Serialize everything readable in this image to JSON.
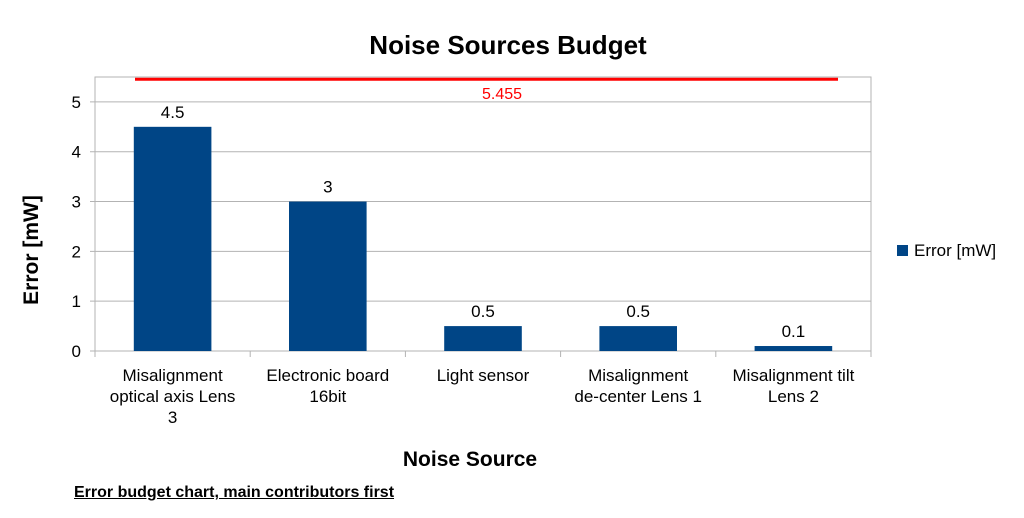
{
  "chart_data": {
    "type": "bar",
    "title": "Noise Sources Budget",
    "xlabel": "Noise Source",
    "ylabel": "Error [mW]",
    "categories": [
      "Misalignment optical axis Lens 3",
      "Electronic board 16bit",
      "Light sensor",
      "Misalignment de-center Lens 1",
      "Misalignment tilt Lens 2"
    ],
    "category_lines": [
      [
        "Misalignment",
        "optical axis Lens",
        "3"
      ],
      [
        "Electronic board",
        "16bit"
      ],
      [
        "Light sensor"
      ],
      [
        "Misalignment",
        "de-center Lens 1"
      ],
      [
        "Misalignment tilt",
        "Lens 2"
      ]
    ],
    "series": [
      {
        "name": "Error [mW]",
        "values": [
          4.5,
          3,
          0.5,
          0.5,
          0.1
        ],
        "color": "#004586"
      }
    ],
    "data_labels": [
      "4.5",
      "3",
      "0.5",
      "0.5",
      "0.1"
    ],
    "reference_line": {
      "value": 5.455,
      "label": "5.455",
      "color": "#ff0000"
    },
    "ylim": [
      0,
      5.5
    ],
    "yticks": [
      "0",
      "1",
      "2",
      "3",
      "4",
      "5"
    ],
    "grid": true,
    "legend_position": "right"
  },
  "caption": "Error budget chart, main contributors first"
}
